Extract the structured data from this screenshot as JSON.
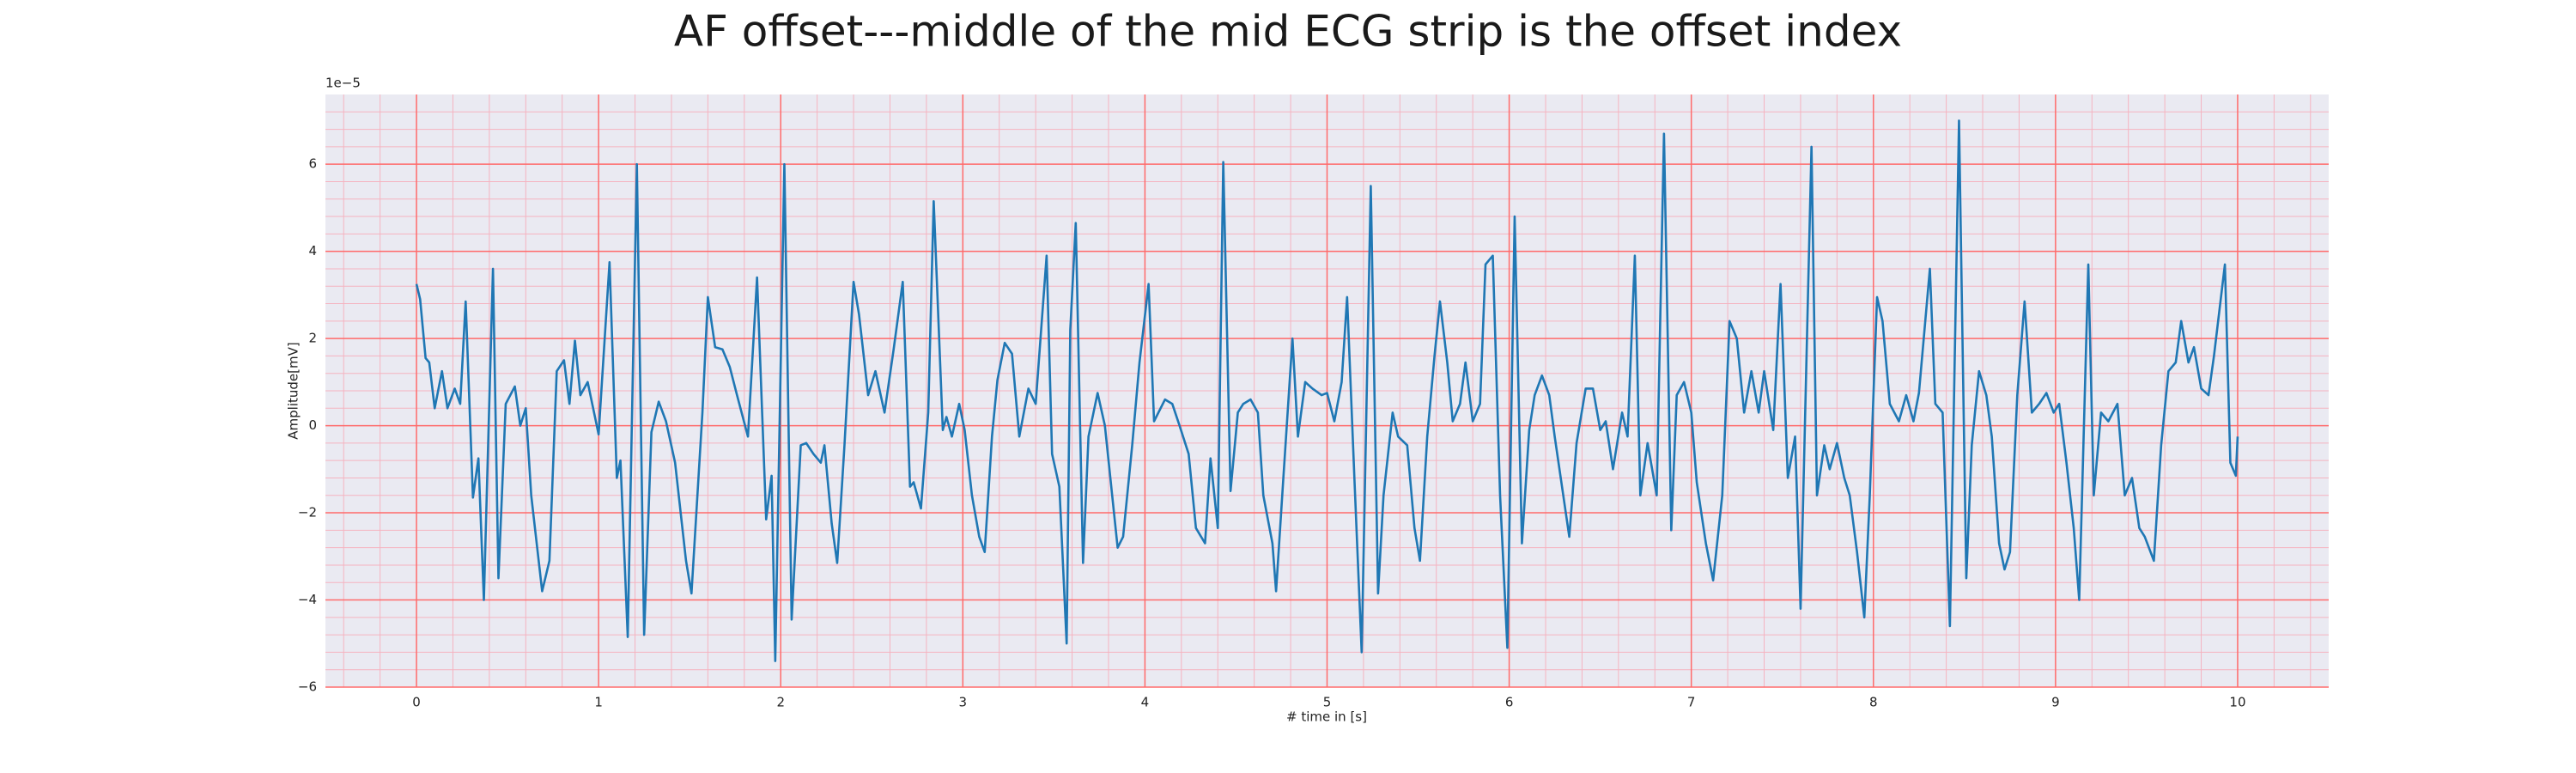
{
  "chart_data": {
    "type": "line",
    "title": "AF offset---middle of the mid ECG strip is the offset index",
    "x_label": "# time in [s]",
    "y_label": "Amplitude[mV]",
    "y_offset_label": "1e−5",
    "color": "#1f77b4",
    "background": "#eaeaf2",
    "grid": true,
    "grid_color": "#ff6b6b",
    "minor_grid": true,
    "minor_grid_color": "#f5b3c0",
    "xlim": [
      -0.5,
      10.5
    ],
    "ylim": [
      -6,
      7.6
    ],
    "xticks": [
      0,
      1,
      2,
      3,
      4,
      5,
      6,
      7,
      8,
      9,
      10
    ],
    "yticks": [
      {
        "value": -6,
        "label": "−6"
      },
      {
        "value": -4,
        "label": "−4"
      },
      {
        "value": -2,
        "label": "−2"
      },
      0,
      2,
      4,
      6
    ],
    "x": [
      0,
      0.02,
      0.05,
      0.07,
      0.1,
      0.14,
      0.17,
      0.21,
      0.24,
      0.27,
      0.31,
      0.34,
      0.37,
      0.42,
      0.45,
      0.49,
      0.54,
      0.57,
      0.6,
      0.63,
      0.69,
      0.73,
      0.77,
      0.81,
      0.84,
      0.87,
      0.9,
      0.94,
      1.0,
      1.06,
      1.1,
      1.12,
      1.16,
      1.21,
      1.25,
      1.29,
      1.33,
      1.37,
      1.42,
      1.48,
      1.51,
      1.57,
      1.6,
      1.64,
      1.68,
      1.72,
      1.76,
      1.82,
      1.87,
      1.92,
      1.95,
      1.97,
      2.02,
      2.06,
      2.11,
      2.14,
      2.18,
      2.22,
      2.24,
      2.28,
      2.31,
      2.35,
      2.4,
      2.43,
      2.48,
      2.52,
      2.57,
      2.62,
      2.67,
      2.71,
      2.73,
      2.77,
      2.81,
      2.84,
      2.89,
      2.91,
      2.94,
      2.98,
      3.01,
      3.05,
      3.09,
      3.12,
      3.16,
      3.19,
      3.23,
      3.27,
      3.31,
      3.36,
      3.4,
      3.46,
      3.49,
      3.53,
      3.57,
      3.59,
      3.62,
      3.66,
      3.69,
      3.74,
      3.78,
      3.82,
      3.85,
      3.88,
      3.93,
      3.97,
      4.02,
      4.05,
      4.11,
      4.15,
      4.19,
      4.24,
      4.28,
      4.33,
      4.36,
      4.4,
      4.43,
      4.47,
      4.51,
      4.54,
      4.58,
      4.62,
      4.65,
      4.7,
      4.72,
      4.76,
      4.81,
      4.84,
      4.88,
      4.92,
      4.97,
      5.0,
      5.04,
      5.08,
      5.11,
      5.15,
      5.19,
      5.24,
      5.28,
      5.31,
      5.36,
      5.39,
      5.44,
      5.48,
      5.51,
      5.55,
      5.59,
      5.62,
      5.66,
      5.69,
      5.73,
      5.76,
      5.8,
      5.84,
      5.87,
      5.91,
      5.95,
      5.99,
      6.03,
      6.07,
      6.11,
      6.14,
      6.18,
      6.22,
      6.25,
      6.29,
      6.33,
      6.37,
      6.42,
      6.46,
      6.5,
      6.53,
      6.57,
      6.62,
      6.65,
      6.69,
      6.72,
      6.76,
      6.81,
      6.85,
      6.89,
      6.92,
      6.96,
      7.0,
      7.03,
      7.08,
      7.12,
      7.17,
      7.21,
      7.25,
      7.29,
      7.33,
      7.37,
      7.4,
      7.45,
      7.49,
      7.53,
      7.57,
      7.6,
      7.66,
      7.69,
      7.73,
      7.76,
      7.8,
      7.84,
      7.87,
      7.91,
      7.95,
      7.98,
      8.02,
      8.05,
      8.09,
      8.14,
      8.18,
      8.22,
      8.25,
      8.31,
      8.34,
      8.38,
      8.42,
      8.47,
      8.51,
      8.54,
      8.58,
      8.62,
      8.65,
      8.69,
      8.72,
      8.75,
      8.79,
      8.83,
      8.87,
      8.91,
      8.95,
      8.99,
      9.02,
      9.06,
      9.1,
      9.13,
      9.18,
      9.21,
      9.25,
      9.29,
      9.34,
      9.38,
      9.42,
      9.46,
      9.49,
      9.54,
      9.58,
      9.62,
      9.66,
      9.69,
      9.73,
      9.76,
      9.8,
      9.84,
      9.87,
      9.93,
      9.96,
      9.99,
      10.0
    ],
    "values": [
      3.25,
      2.9,
      1.55,
      1.45,
      0.4,
      1.25,
      0.4,
      0.85,
      0.5,
      2.85,
      -1.65,
      -0.75,
      -4.0,
      3.6,
      -3.5,
      0.5,
      0.9,
      0,
      0.4,
      -1.6,
      -3.8,
      -3.1,
      1.25,
      1.5,
      0.5,
      1.95,
      0.7,
      1.0,
      -0.2,
      3.75,
      -1.2,
      -0.8,
      -4.85,
      6.0,
      -4.8,
      -0.15,
      0.55,
      0.1,
      -0.85,
      -3.1,
      -3.85,
      0.3,
      2.95,
      1.8,
      1.75,
      1.35,
      0.7,
      -0.25,
      3.4,
      -2.15,
      -1.15,
      -5.4,
      6.0,
      -4.45,
      -0.45,
      -0.4,
      -0.65,
      -0.85,
      -0.45,
      -2.25,
      -3.15,
      -0.45,
      3.3,
      2.55,
      0.7,
      1.25,
      0.3,
      1.75,
      3.3,
      -1.4,
      -1.3,
      -1.9,
      0.3,
      5.15,
      -0.1,
      0.2,
      -0.25,
      0.5,
      -0.1,
      -1.6,
      -2.55,
      -2.9,
      -0.25,
      1.05,
      1.9,
      1.65,
      -0.25,
      0.85,
      0.5,
      3.9,
      -0.65,
      -1.4,
      -5.0,
      2.2,
      4.65,
      -3.15,
      -0.25,
      0.75,
      0,
      -1.6,
      -2.8,
      -2.55,
      -0.45,
      1.45,
      3.25,
      0.1,
      0.6,
      0.5,
      0,
      -0.65,
      -2.35,
      -2.7,
      -0.75,
      -2.35,
      6.05,
      -1.5,
      0.3,
      0.5,
      0.6,
      0.3,
      -1.6,
      -2.7,
      -3.8,
      -1.2,
      2.0,
      -0.25,
      1.0,
      0.85,
      0.7,
      0.75,
      0.1,
      1.0,
      2.95,
      -1.2,
      -5.2,
      5.5,
      -3.85,
      -1.6,
      0.3,
      -0.25,
      -0.45,
      -2.35,
      -3.1,
      -0.25,
      1.6,
      2.85,
      1.45,
      0.1,
      0.5,
      1.45,
      0.1,
      0.5,
      3.7,
      3.9,
      -1.6,
      -5.1,
      4.8,
      -2.7,
      -0.1,
      0.7,
      1.15,
      0.7,
      -0.25,
      -1.4,
      -2.55,
      -0.4,
      0.85,
      0.85,
      -0.1,
      0.1,
      -1.0,
      0.3,
      -0.25,
      3.9,
      -1.6,
      -0.4,
      -1.6,
      6.7,
      -2.4,
      0.7,
      1.0,
      0.3,
      -1.3,
      -2.7,
      -3.55,
      -1.6,
      2.4,
      2.0,
      0.3,
      1.25,
      0.3,
      1.25,
      -0.1,
      3.25,
      -1.2,
      -0.25,
      -4.2,
      6.4,
      -1.6,
      -0.45,
      -1.0,
      -0.4,
      -1.2,
      -1.6,
      -2.9,
      -4.4,
      -1.6,
      2.95,
      2.4,
      0.5,
      0.1,
      0.7,
      0.1,
      0.75,
      3.6,
      0.5,
      0.3,
      -4.6,
      7.0,
      -3.5,
      -0.45,
      1.25,
      0.7,
      -0.25,
      -2.7,
      -3.3,
      -2.9,
      0.7,
      2.85,
      0.3,
      0.5,
      0.75,
      0.3,
      0.5,
      -0.85,
      -2.35,
      -4.0,
      3.7,
      -1.6,
      0.3,
      0.1,
      0.5,
      -1.6,
      -1.2,
      -2.35,
      -2.55,
      -3.1,
      -0.45,
      1.25,
      1.45,
      2.4,
      1.45,
      1.8,
      0.85,
      0.7,
      1.6,
      3.7,
      -0.85,
      -1.15,
      -0.25
    ]
  }
}
